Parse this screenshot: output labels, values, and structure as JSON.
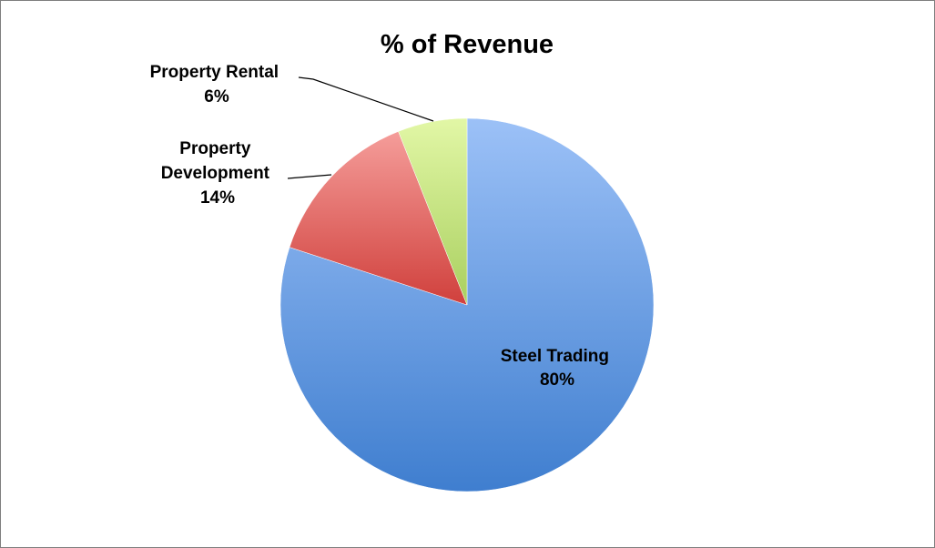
{
  "chart_data": {
    "type": "pie",
    "title": "% of Revenue",
    "slices": [
      {
        "label": "Steel Trading",
        "value": 80,
        "value_label": "80%",
        "color": "#5b8fd9"
      },
      {
        "label": "Property Development",
        "value": 14,
        "value_label": "14%",
        "color": "#e06060"
      },
      {
        "label": "Property Rental",
        "value": 6,
        "value_label": "6%",
        "color": "#c7e68a"
      }
    ],
    "start": "12 o'clock",
    "direction": "clockwise",
    "legend": "none",
    "data_labels": "category name and percentage"
  }
}
